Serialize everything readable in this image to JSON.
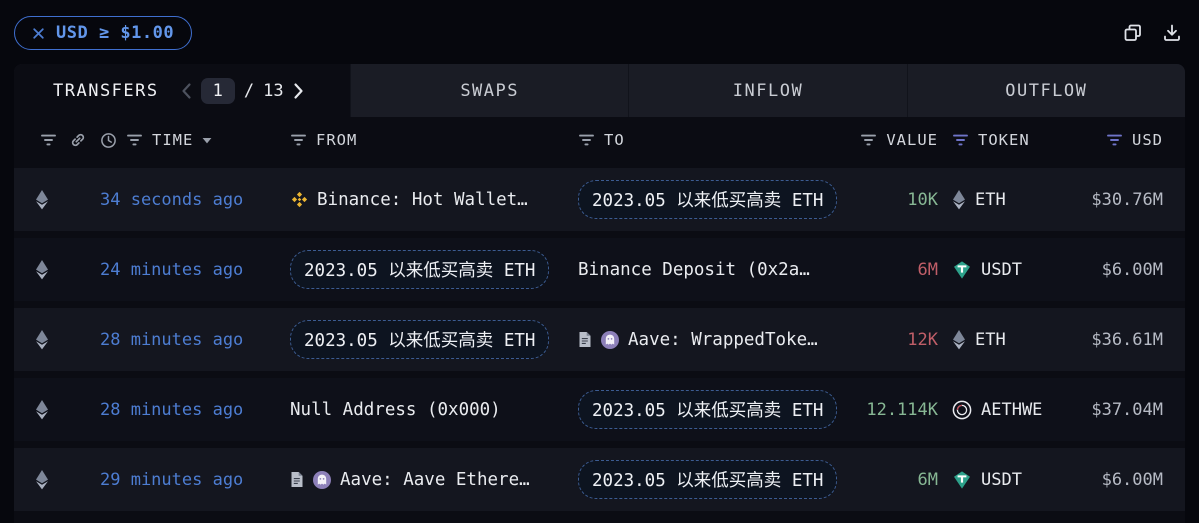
{
  "filter_chip": {
    "label": "USD ≥ $1.00",
    "close_icon": "close-icon"
  },
  "toolbar": {
    "icons": [
      "copy-icon",
      "download-icon"
    ]
  },
  "tabs": {
    "active_label": "TRANSFERS",
    "pagination": {
      "current": "1",
      "separator": "/",
      "total": "13"
    },
    "items": [
      "SWAPS",
      "INFLOW",
      "OUTFLOW"
    ]
  },
  "table": {
    "headers": {
      "time": "TIME",
      "from": "FROM",
      "to": "TO",
      "value": "VALUE",
      "token": "TOKEN",
      "usd": "USD"
    },
    "rows": [
      {
        "chain_icon": "eth-icon",
        "time": "34 seconds ago",
        "from": {
          "style": "text",
          "icons": [
            "binance-icon"
          ],
          "label": "Binance: Hot Wallet…"
        },
        "to": {
          "style": "pill",
          "icons": [],
          "label": "2023.05 以来低买高卖 ETH"
        },
        "value": {
          "text": "10K",
          "direction": "in"
        },
        "token": {
          "icon": "eth-token-icon",
          "symbol": "ETH"
        },
        "usd": "$30.76M"
      },
      {
        "chain_icon": "eth-icon",
        "time": "24 minutes ago",
        "from": {
          "style": "pill",
          "icons": [],
          "label": "2023.05 以来低买高卖 ETH"
        },
        "to": {
          "style": "text",
          "icons": [],
          "label": "Binance Deposit (0x2a…"
        },
        "value": {
          "text": "6M",
          "direction": "out"
        },
        "token": {
          "icon": "usdt-token-icon",
          "symbol": "USDT"
        },
        "usd": "$6.00M"
      },
      {
        "chain_icon": "eth-icon",
        "time": "28 minutes ago",
        "from": {
          "style": "pill",
          "icons": [],
          "label": "2023.05 以来低买高卖 ETH"
        },
        "to": {
          "style": "text",
          "icons": [
            "document-icon",
            "aave-icon"
          ],
          "label": "Aave: WrappedToke…"
        },
        "value": {
          "text": "12K",
          "direction": "out"
        },
        "token": {
          "icon": "eth-token-icon",
          "symbol": "ETH"
        },
        "usd": "$36.61M"
      },
      {
        "chain_icon": "eth-icon",
        "time": "28 minutes ago",
        "from": {
          "style": "text",
          "icons": [],
          "label": "Null Address (0x000)"
        },
        "to": {
          "style": "pill",
          "icons": [],
          "label": "2023.05 以来低买高卖 ETH"
        },
        "value": {
          "text": "12.114K",
          "direction": "in"
        },
        "token": {
          "icon": "aethweth-token-icon",
          "symbol": "AETHWE"
        },
        "usd": "$37.04M"
      },
      {
        "chain_icon": "eth-icon",
        "time": "29 minutes ago",
        "from": {
          "style": "text",
          "icons": [
            "document-icon",
            "aave-icon"
          ],
          "label": "Aave: Aave Ethere…"
        },
        "to": {
          "style": "pill",
          "icons": [],
          "label": "2023.05 以来低买高卖 ETH"
        },
        "value": {
          "text": "6M",
          "direction": "in"
        },
        "token": {
          "icon": "usdt-token-icon",
          "symbol": "USDT"
        },
        "usd": "$6.00M"
      }
    ]
  },
  "colors": {
    "accent_blue": "#4d7dd2",
    "chip_blue": "#6296ea",
    "positive_green": "#87b794",
    "negative_red": "#c05e68",
    "binance_gold": "#eab431",
    "aave_purple": "#8d80b9",
    "usdt_teal": "#2da18a",
    "active_filter_purple": "#6f74c9"
  }
}
